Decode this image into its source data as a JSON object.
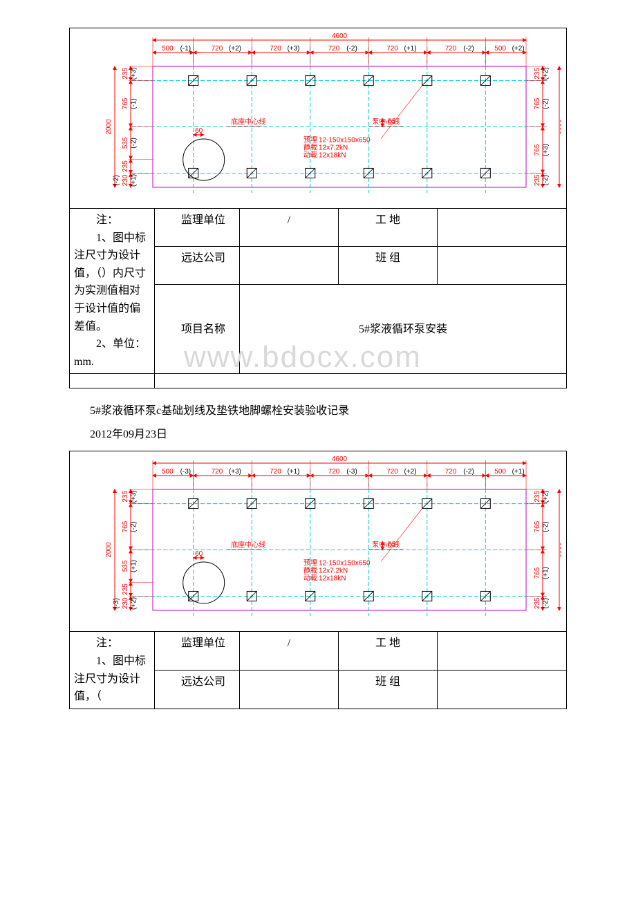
{
  "watermark": "www.bdocx.com",
  "diagram1": {
    "total_width_label": "4600",
    "top_dims": [
      {
        "v": "500",
        "d": "(-1)"
      },
      {
        "v": "720",
        "d": "(+2)"
      },
      {
        "v": "720",
        "d": "(+3)"
      },
      {
        "v": "720",
        "d": "(-2)"
      },
      {
        "v": "720",
        "d": "(+1)"
      },
      {
        "v": "720",
        "d": "(-2)"
      },
      {
        "v": "500",
        "d": "(+2)"
      }
    ],
    "left_height_label": "2000",
    "right_height_label": "2000",
    "left_vdims": [
      {
        "v": "235",
        "d": "(+3)"
      },
      {
        "v": "765",
        "d": "(-1)"
      },
      {
        "v": "535",
        "d": "(-2)"
      },
      {
        "v": "235",
        "d": ""
      },
      {
        "v": "230",
        "d": "(+1)"
      }
    ],
    "left_vdims2": [
      {
        "v": "(-2)",
        "d": ""
      }
    ],
    "right_vdims": [
      {
        "v": "235",
        "d": "(+2)"
      },
      {
        "v": "765",
        "d": "(-2)"
      },
      {
        "v": "765",
        "d": "(+3)"
      },
      {
        "v": "235",
        "d": "(-2)"
      }
    ],
    "offset60": "60",
    "offset65": "65",
    "label_left": "底座中心线",
    "label_right": "泵中心线",
    "spec_lines": [
      {
        "k": "预埋",
        "v": "12-150x150x650"
      },
      {
        "k": "静载",
        "v": "12x7.2kN"
      },
      {
        "k": "动载",
        "v": "12x18kN"
      }
    ],
    "colors": {
      "dim": "#ff0000",
      "grid": "#00d0d0",
      "outline": "#c000c0",
      "text": "#ff0000"
    }
  },
  "diagram2": {
    "total_width_label": "4600",
    "top_dims": [
      {
        "v": "500",
        "d": "(-3)"
      },
      {
        "v": "720",
        "d": "(+3)"
      },
      {
        "v": "720",
        "d": "(+1)"
      },
      {
        "v": "720",
        "d": "(-3)"
      },
      {
        "v": "720",
        "d": "(+2)"
      },
      {
        "v": "720",
        "d": "(-2)"
      },
      {
        "v": "500",
        "d": "(+1)"
      }
    ],
    "left_height_label": "2000",
    "right_height_label": "2000",
    "left_vdims": [
      {
        "v": "235",
        "d": "(+3)"
      },
      {
        "v": "765",
        "d": "(-2)"
      },
      {
        "v": "535",
        "d": "(+1)"
      },
      {
        "v": "235",
        "d": ""
      },
      {
        "v": "230",
        "d": "(+2)"
      }
    ],
    "left_vdims2": [
      {
        "v": "(-3)",
        "d": ""
      }
    ],
    "right_vdims": [
      {
        "v": "235",
        "d": "(+2)"
      },
      {
        "v": "765",
        "d": "(-2)"
      },
      {
        "v": "765",
        "d": "(+1)"
      },
      {
        "v": "235",
        "d": "(-2)"
      }
    ],
    "offset60": "60",
    "offset65": "65",
    "label_left": "底座中心线",
    "label_right": "泵中心线",
    "spec_lines": [
      {
        "k": "预埋",
        "v": "12-150x150x650"
      },
      {
        "k": "静载",
        "v": "12x7.2kN"
      },
      {
        "k": "动载",
        "v": "12x18kN"
      }
    ],
    "colors": {
      "dim": "#ff0000",
      "grid": "#00d0d0",
      "outline": "#c000c0",
      "text": "#ff0000"
    }
  },
  "table1": {
    "notes_header": "注：",
    "notes_body1": "1、图中标注尺寸为设计值，（）内尺寸为实测值相对于设计值的偏差值。",
    "notes_body2": "2、单位：mm.",
    "row1_label": "监理单位",
    "row1_val": "/",
    "row1_label2": "工 地",
    "row1_val2": "",
    "row2_label": "远达公司",
    "row2_val": "",
    "row2_label2": "班 组",
    "row2_val2": "",
    "row3_label": "项目名称",
    "row3_val": "5#浆液循环泵安装"
  },
  "section": {
    "title": "5#浆液循环泵c基础划线及垫铁地脚螺栓安装验收记录",
    "date": "2012年09月23日"
  },
  "table2": {
    "notes_header": "注：",
    "notes_body1": "1、图中标注尺寸为设计值，（",
    "row1_label": "监理单位",
    "row1_val": "/",
    "row1_label2": "工 地",
    "row1_val2": "",
    "row2_label": "远达公司",
    "row2_val": "",
    "row2_label2": "班 组",
    "row2_val2": ""
  }
}
